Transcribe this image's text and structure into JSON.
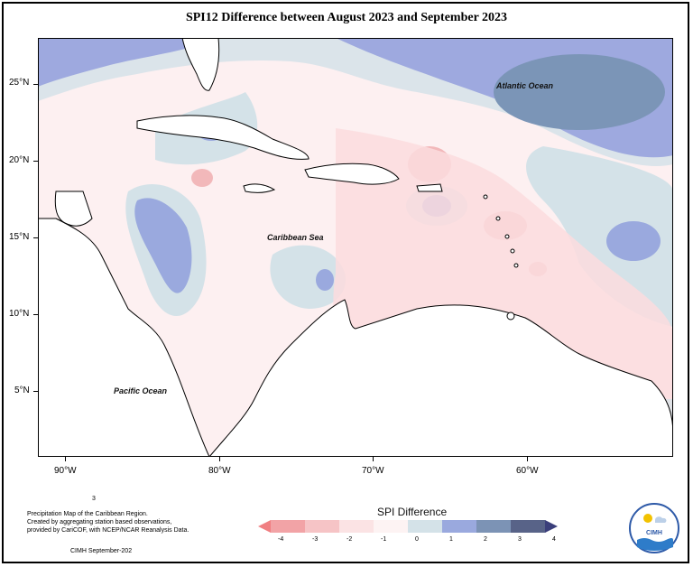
{
  "title": "SPI12 Difference between August 2023 and September 2023",
  "map": {
    "labels": {
      "atlantic": "Atlantic Ocean",
      "caribbean": "Caribbean Sea",
      "pacific": "Pacific Ocean"
    },
    "lat_ticks": [
      "25°N",
      "20°N",
      "15°N",
      "10°N",
      "5°N"
    ],
    "lon_ticks": [
      "90°W",
      "80°W",
      "70°W",
      "60°W"
    ]
  },
  "caption": {
    "marker": "3",
    "line1": "Precipitation Map of the Caribbean Region.",
    "line2": "Created by aggregating station based observations,",
    "line3": "provided by CariCOF, with NCEP/NCAR Reanalysis Data.",
    "credit": "CIMH September-202"
  },
  "legend": {
    "title": "SPI Difference",
    "ticks": [
      "-4",
      "-3",
      "-2",
      "-1",
      "0",
      "1",
      "2",
      "3",
      "4"
    ],
    "colors": [
      "#f07f82",
      "#f2a3a6",
      "#f6c4c6",
      "#fbe3e4",
      "#fdf3f3",
      "#d4e2e8",
      "#9aa9de",
      "#7c93b5",
      "#586388",
      "#3b3f7b"
    ]
  },
  "logo": {
    "text": "CIMH"
  }
}
